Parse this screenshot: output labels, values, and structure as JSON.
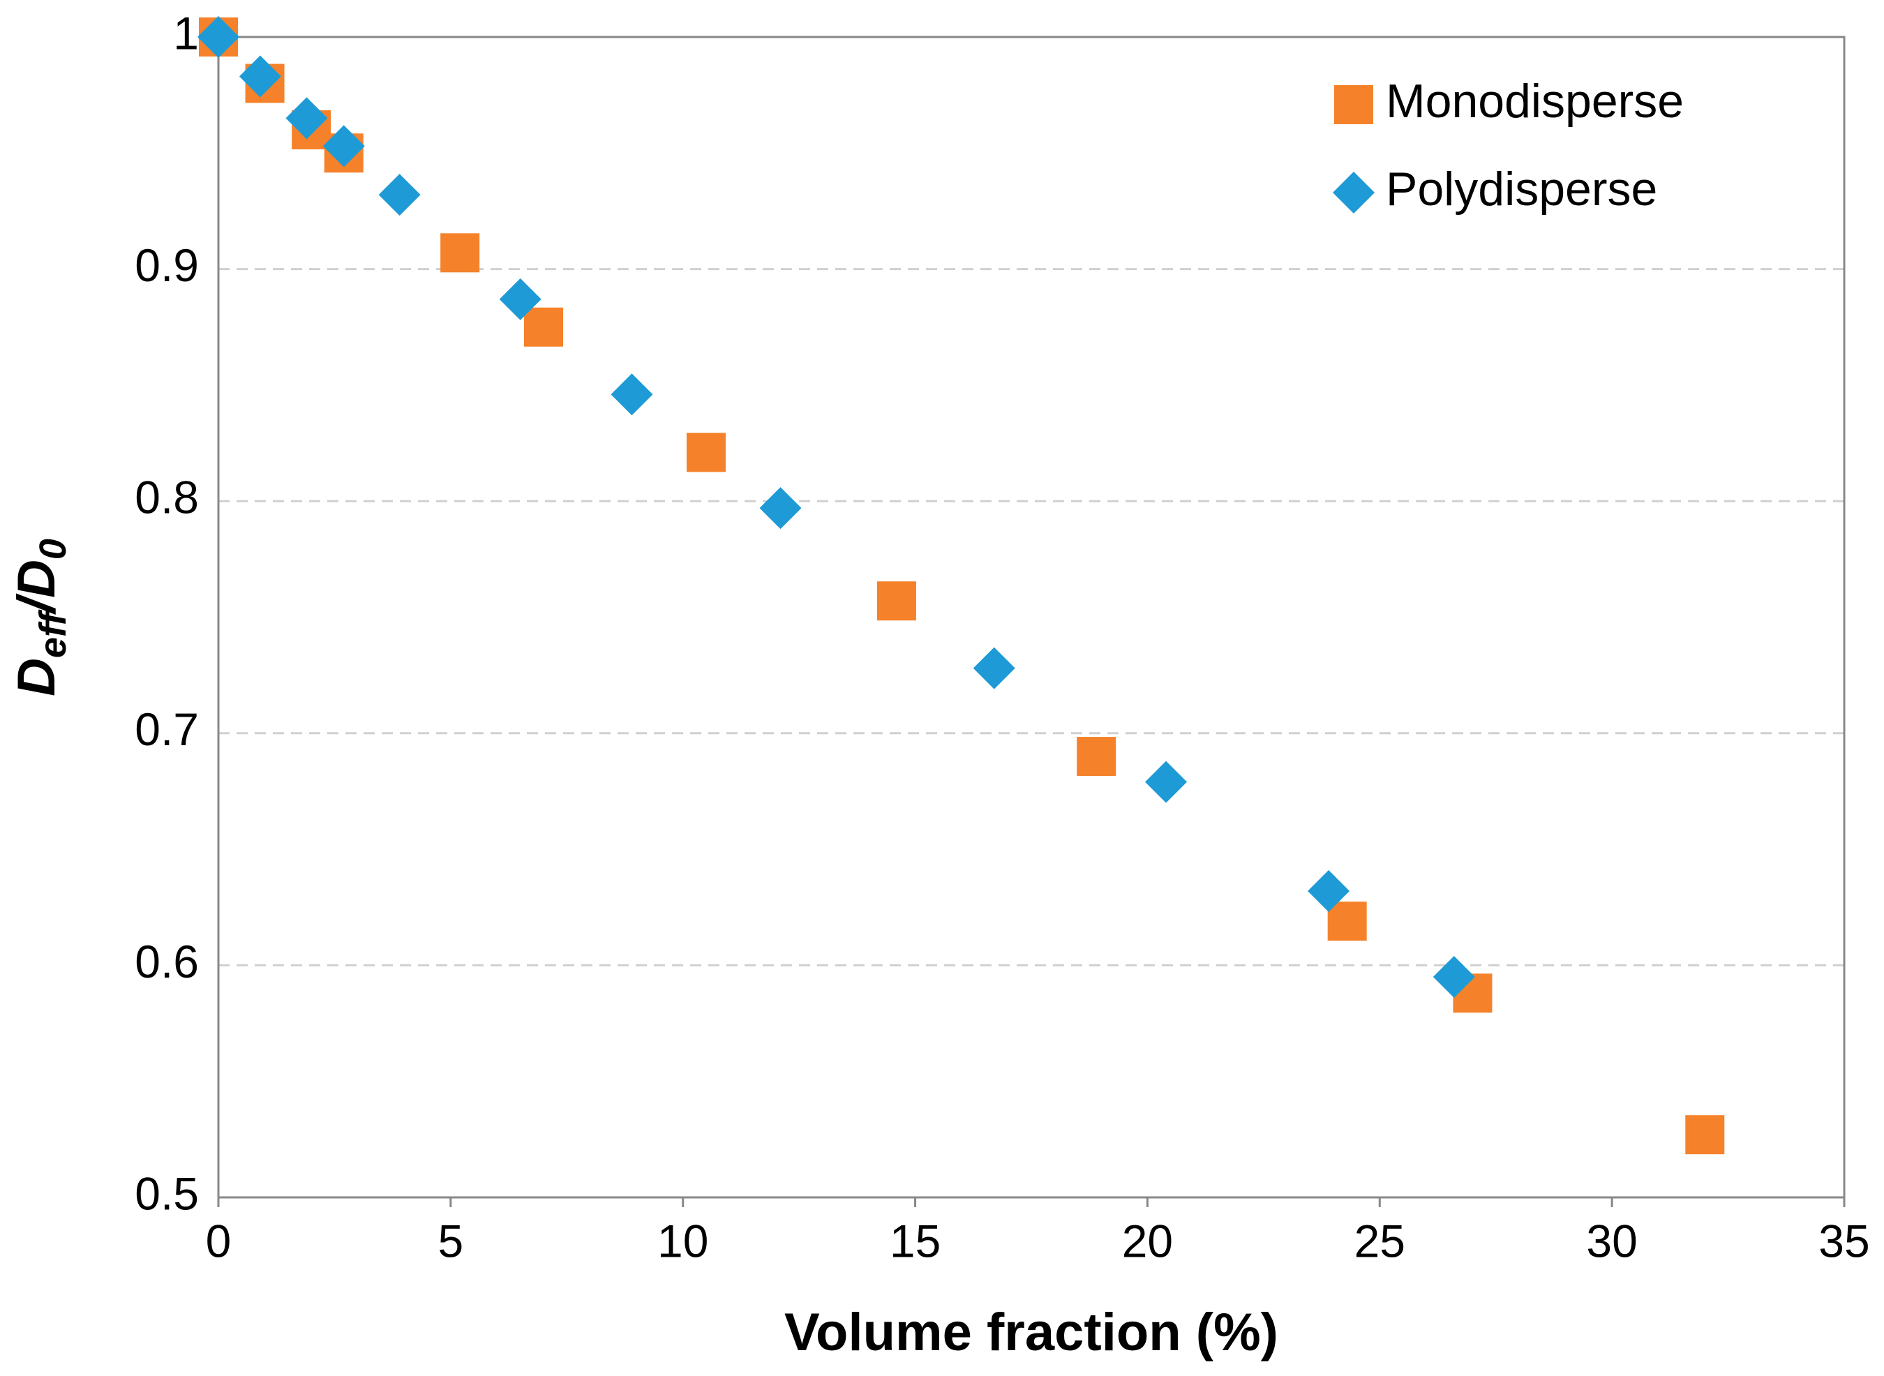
{
  "chart_data": {
    "type": "scatter",
    "xlabel": "Volume fraction (%)",
    "ylabel": [
      "D",
      "eff",
      "/D",
      "0"
    ],
    "xlim": [
      0,
      35
    ],
    "xticks": [
      0,
      5,
      10,
      15,
      20,
      25,
      30,
      35
    ],
    "ylim": [
      0.5,
      1
    ],
    "yticks": [
      0.5,
      0.6,
      0.7,
      0.8,
      0.9,
      1
    ],
    "grid": true,
    "legend": "upper right",
    "series": [
      {
        "name": "Monodisperse",
        "color": "#f5822a",
        "marker": "square",
        "x": [
          0,
          1.0,
          2.0,
          2.7,
          5.2,
          7.0,
          10.5,
          14.6,
          18.9,
          24.3,
          27.0,
          32.0
        ],
        "values": [
          1.0,
          0.98,
          0.96,
          0.95,
          0.907,
          0.875,
          0.821,
          0.757,
          0.69,
          0.619,
          0.588,
          0.527
        ]
      },
      {
        "name": "Polydisperse",
        "color": "#1e9ad6",
        "marker": "diamond",
        "x": [
          0,
          0.9,
          1.9,
          2.7,
          3.9,
          6.5,
          8.9,
          12.1,
          16.7,
          20.4,
          23.9,
          26.6
        ],
        "values": [
          1.0,
          0.983,
          0.965,
          0.953,
          0.932,
          0.887,
          0.846,
          0.797,
          0.728,
          0.679,
          0.632,
          0.595
        ]
      }
    ]
  }
}
